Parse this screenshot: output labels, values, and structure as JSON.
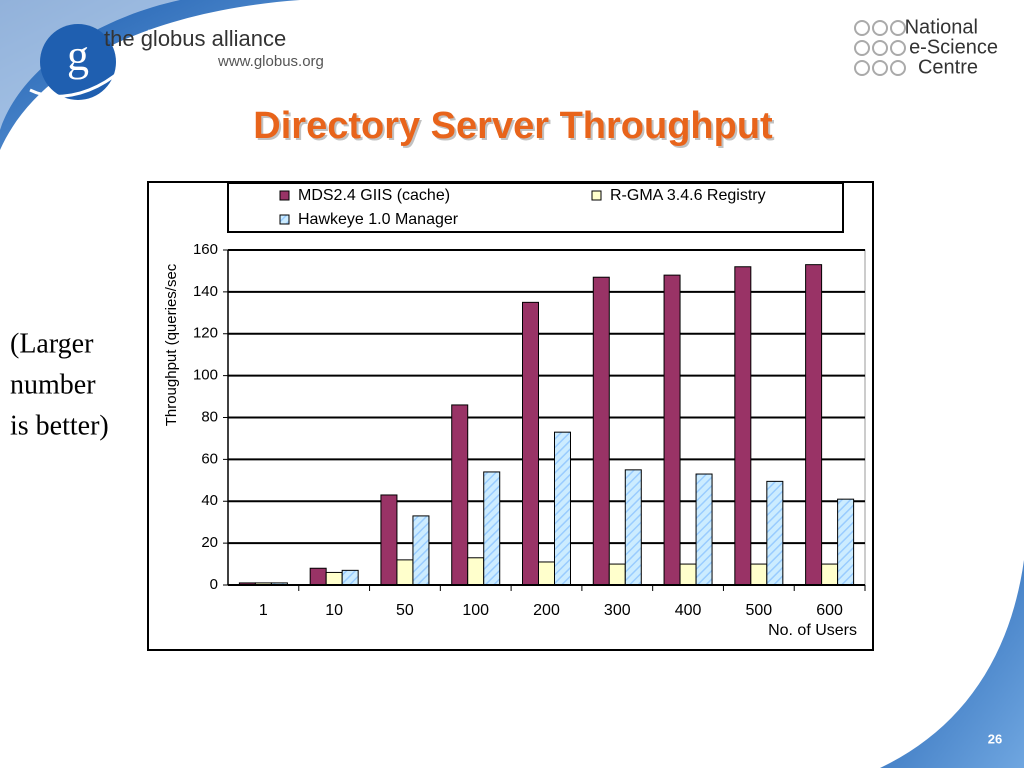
{
  "slide": {
    "logo_text": "the globus alliance",
    "logo_url": "www.globus.org",
    "logo_letter": "g",
    "nesc_lines": [
      "National",
      "e-Science",
      "Centre"
    ],
    "note_lines": [
      "(Larger",
      "number",
      "is better)"
    ],
    "page_number": "26"
  },
  "chart_data": {
    "type": "bar",
    "title": "Directory Server Throughput",
    "y_label": "Throughput (queries/sec",
    "x_label": "No. of Users",
    "categories": [
      "1",
      "10",
      "50",
      "100",
      "200",
      "300",
      "400",
      "500",
      "600"
    ],
    "series": [
      {
        "name": "MDS2.4 GIIS (cache)",
        "color": "#993366",
        "values": [
          1,
          8,
          43,
          86,
          135,
          147,
          148,
          152,
          153
        ]
      },
      {
        "name": "R-GMA 3.4.6 Registry",
        "color": "#ffffcc",
        "values": [
          1,
          6,
          12,
          13,
          11,
          10,
          10,
          10,
          10
        ]
      },
      {
        "name": "Hawkeye 1.0 Manager",
        "color": "#ccecff",
        "values": [
          1,
          7,
          33,
          54,
          73,
          55,
          53,
          49.5,
          41
        ]
      }
    ],
    "ylim": [
      0,
      160
    ],
    "yticks": [
      0,
      20,
      40,
      60,
      80,
      100,
      120,
      140,
      160
    ],
    "grid": true,
    "legend": "top"
  }
}
